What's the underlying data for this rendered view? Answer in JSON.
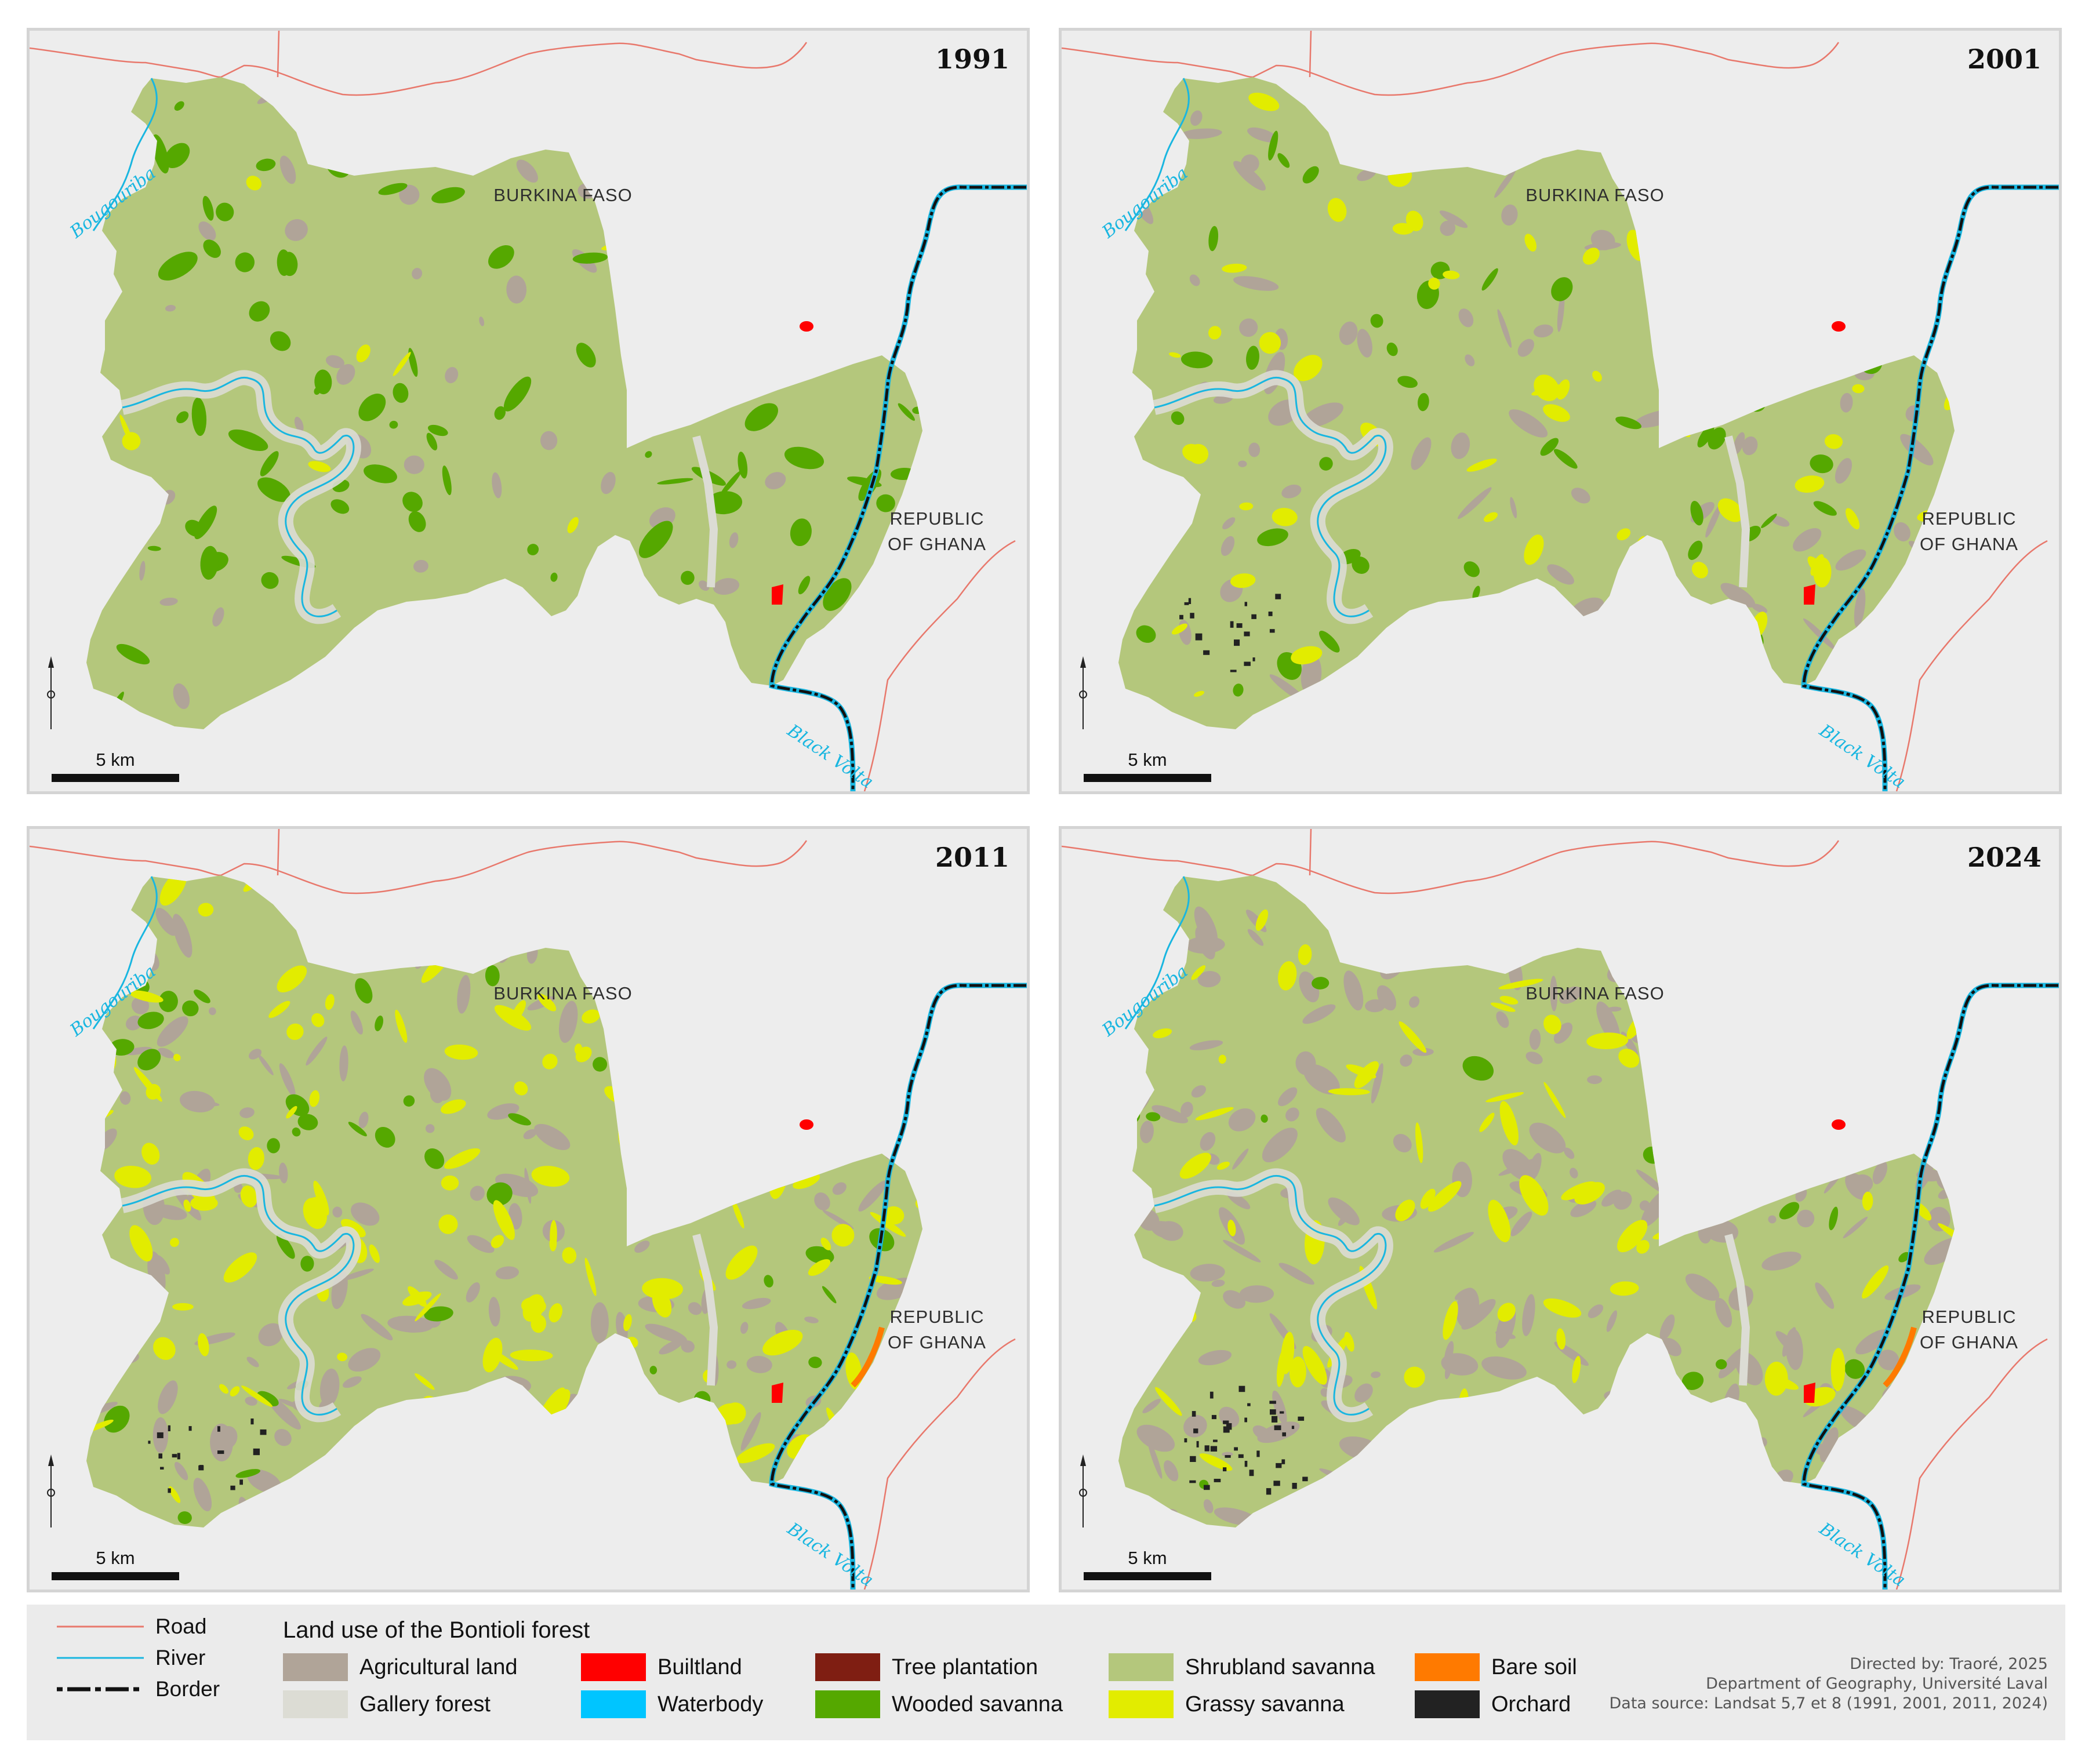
{
  "panels": [
    {
      "year": "1991",
      "country_bf": "BURKINA FASO",
      "country_gh_line1": "REPUBLIC",
      "country_gh_line2": "OF GHANA",
      "river1": "Bougouriba",
      "river2": "Black Volta",
      "scale_label": "5 km"
    },
    {
      "year": "2001",
      "country_bf": "BURKINA FASO",
      "country_gh_line1": "REPUBLIC",
      "country_gh_line2": "OF GHANA",
      "river1": "Bougouriba",
      "river2": "Black Volta",
      "scale_label": "5 km"
    },
    {
      "year": "2011",
      "country_bf": "BURKINA FASO",
      "country_gh_line1": "REPUBLIC",
      "country_gh_line2": "OF GHANA",
      "river1": "Bougouriba",
      "river2": "Black Volta",
      "scale_label": "5 km"
    },
    {
      "year": "2024",
      "country_bf": "BURKINA FASO",
      "country_gh_line1": "REPUBLIC",
      "country_gh_line2": "OF GHANA",
      "river1": "Bougouriba",
      "river2": "Black Volta",
      "scale_label": "5 km"
    }
  ],
  "legend": {
    "lines": [
      {
        "label": "Road",
        "color": "#e8786c"
      },
      {
        "label": "River",
        "color": "#19b6e0"
      },
      {
        "label": "Border",
        "color": "#111111"
      }
    ],
    "title": "Land use of the Bontioli forest",
    "classes": [
      {
        "label": "Agricultural land",
        "color": "#b0a498"
      },
      {
        "label": "Gallery forest",
        "color": "#dcdcd4"
      },
      {
        "label": "Builtland",
        "color": "#ff0000"
      },
      {
        "label": "Waterbody",
        "color": "#00c5ff"
      },
      {
        "label": "Tree plantation",
        "color": "#7f1e12"
      },
      {
        "label": "Wooded savanna",
        "color": "#55a800"
      },
      {
        "label": "Shrubland savanna",
        "color": "#b4c77c"
      },
      {
        "label": "Grassy savanna",
        "color": "#e2ec00"
      },
      {
        "label": "Bare soil",
        "color": "#ff7a00"
      },
      {
        "label": "Orchard",
        "color": "#222222"
      }
    ],
    "credits": {
      "line1": "Directed by: Traoré, 2025",
      "line2": "Department of Geography, Université Laval",
      "line3": "Data source: Landsat 5,7 et 8 (1991, 2001, 2011, 2024)"
    }
  },
  "map_patches": {
    "1991": {
      "grassy_savanna": 0.02,
      "wooded_savanna": 0.12,
      "agricultural_land": 0.06
    },
    "2001": {
      "grassy_savanna": 0.08,
      "wooded_savanna": 0.08,
      "agricultural_land": 0.12
    },
    "2011": {
      "grassy_savanna": 0.18,
      "wooded_savanna": 0.06,
      "agricultural_land": 0.2
    },
    "2024": {
      "grassy_savanna": 0.12,
      "wooded_savanna": 0.02,
      "agricultural_land": 0.28
    }
  }
}
